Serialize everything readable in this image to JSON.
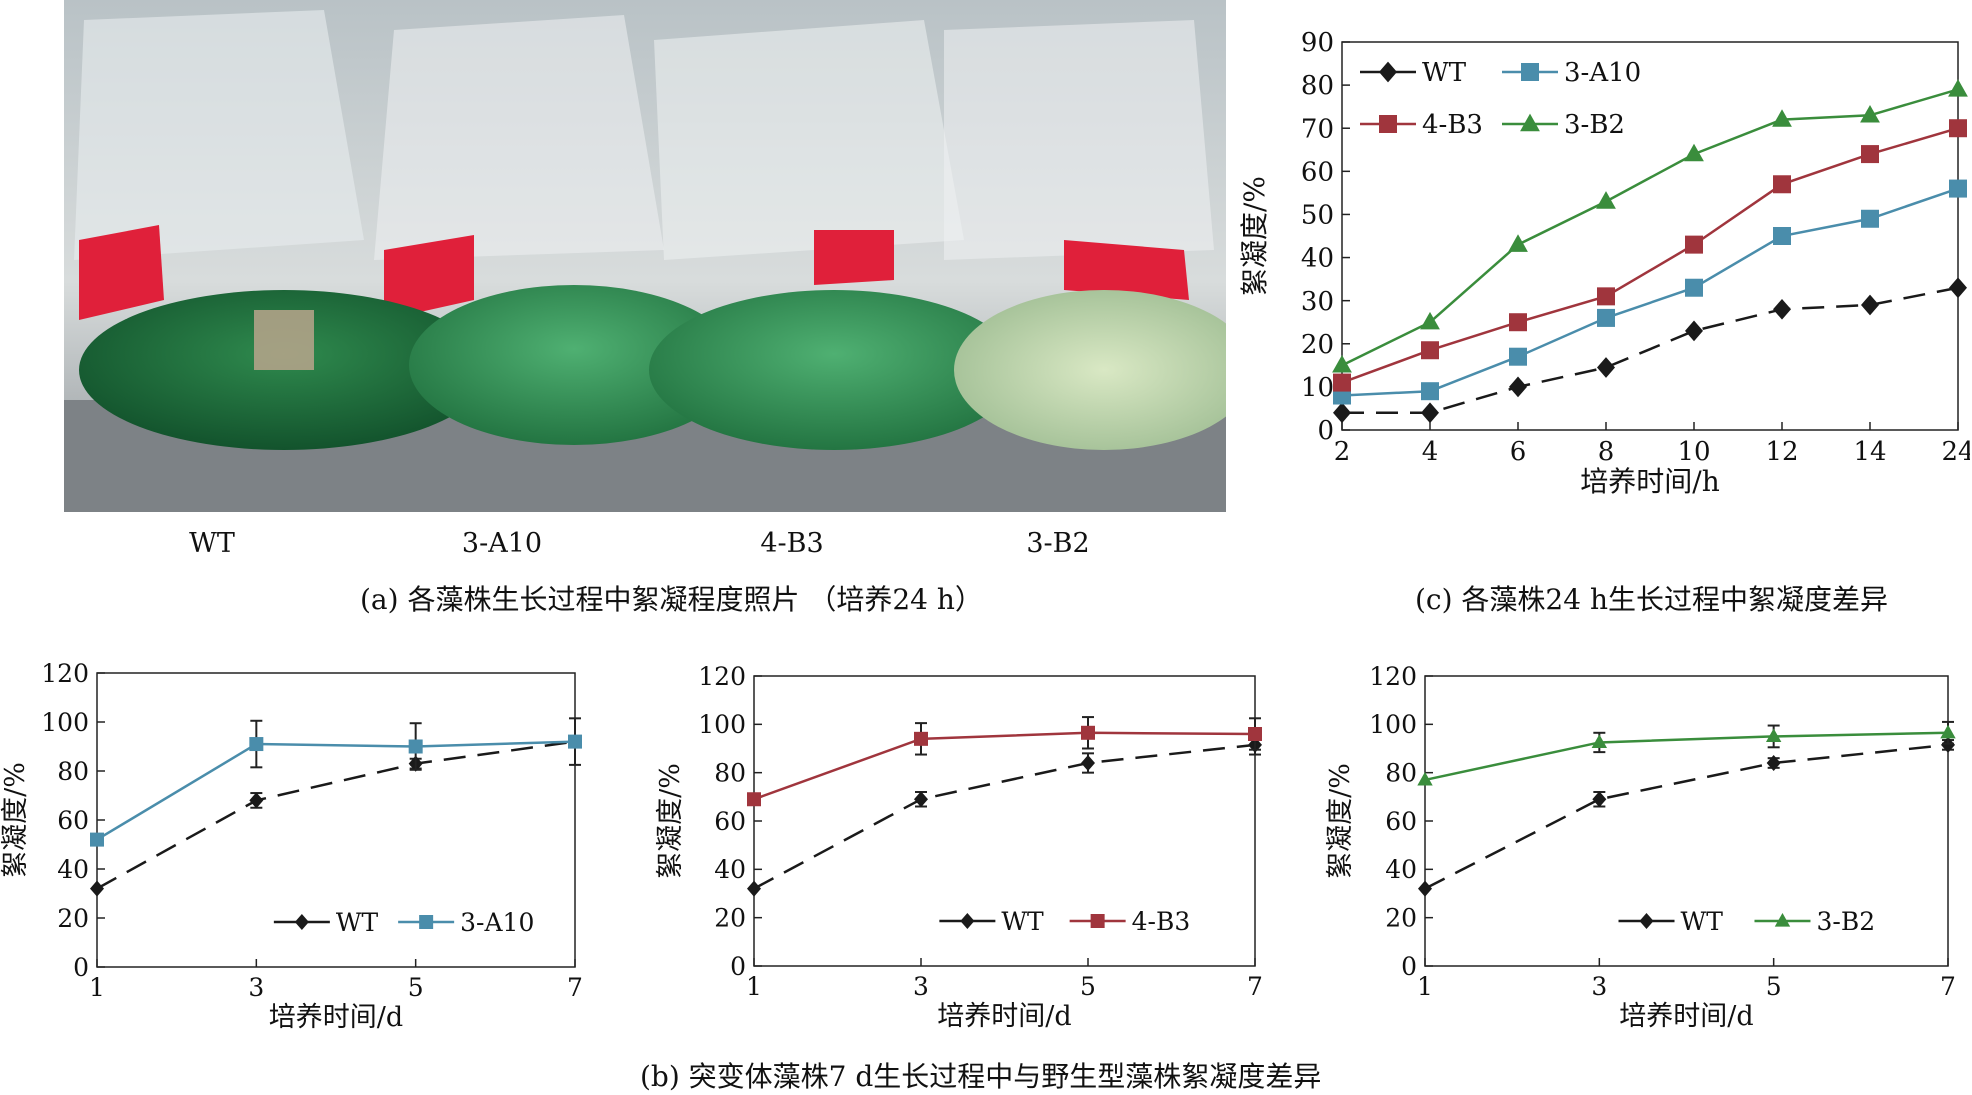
{
  "photo": {
    "labels": [
      "WT",
      "3-A10",
      "4-B3",
      "3-B2"
    ],
    "caption": "(a) 各藻株生长过程中絮凝程度照片 （培养24 h）"
  },
  "caption_c": "(c) 各藻株24 h生长过程中絮凝度差异",
  "caption_b": "(b) 突变体藻株7 d生长过程中与野生型藻株絮凝度差异",
  "colors": {
    "WT": "#1a1a1a",
    "3-A10": "#4a8dab",
    "4-B3": "#a0353d",
    "3-B2": "#3a8d3c"
  },
  "chart_data": [
    {
      "id": "c",
      "type": "line",
      "xlabel": "培养时间/h",
      "ylabel": "絮凝度/%",
      "categories": [
        "2",
        "4",
        "6",
        "8",
        "10",
        "12",
        "14",
        "24"
      ],
      "ylim": [
        0,
        90
      ],
      "yticks": [
        0,
        10,
        20,
        30,
        40,
        50,
        60,
        70,
        80,
        90
      ],
      "legend": "top-left",
      "series": [
        {
          "name": "WT",
          "marker": "diamond",
          "dashed": true,
          "values": [
            4,
            4,
            10,
            14.5,
            23,
            28,
            29,
            33
          ]
        },
        {
          "name": "3-A10",
          "marker": "square",
          "dashed": false,
          "values": [
            8,
            9,
            17,
            26,
            33,
            45,
            49,
            56
          ]
        },
        {
          "name": "4-B3",
          "marker": "square",
          "dashed": false,
          "values": [
            11,
            18.5,
            25,
            31,
            43,
            57,
            64,
            70
          ]
        },
        {
          "name": "3-B2",
          "marker": "triangle",
          "dashed": false,
          "values": [
            15,
            25,
            43,
            53,
            64,
            72,
            73,
            79
          ]
        }
      ]
    },
    {
      "id": "b1",
      "type": "line",
      "xlabel": "培养时间/d",
      "ylabel": "絮凝度/%",
      "categories": [
        "1",
        "3",
        "5",
        "7"
      ],
      "ylim": [
        0,
        120
      ],
      "yticks": [
        0,
        20,
        40,
        60,
        80,
        100,
        120
      ],
      "legend": "bottom-right",
      "series": [
        {
          "name": "WT",
          "marker": "diamond",
          "dashed": true,
          "values": [
            32,
            68,
            83,
            92
          ],
          "errors": [
            0,
            3,
            2,
            2
          ]
        },
        {
          "name": "3-A10",
          "marker": "square",
          "dashed": false,
          "values": [
            52,
            91,
            90,
            92
          ],
          "errors": [
            0,
            9.5,
            9.5,
            9.5
          ]
        }
      ]
    },
    {
      "id": "b2",
      "type": "line",
      "xlabel": "培养时间/d",
      "ylabel": "絮凝度/%",
      "categories": [
        "1",
        "3",
        "5",
        "7"
      ],
      "ylim": [
        0,
        120
      ],
      "yticks": [
        0,
        20,
        40,
        60,
        80,
        100,
        120
      ],
      "legend": "bottom-right",
      "series": [
        {
          "name": "WT",
          "marker": "diamond",
          "dashed": true,
          "values": [
            32,
            69,
            84,
            91.5
          ],
          "errors": [
            0,
            3,
            4,
            4
          ]
        },
        {
          "name": "4-B3",
          "marker": "square",
          "dashed": false,
          "values": [
            69,
            94,
            96.5,
            96
          ],
          "errors": [
            0,
            6.5,
            6.5,
            6.5
          ]
        }
      ]
    },
    {
      "id": "b3",
      "type": "line",
      "xlabel": "培养时间/d",
      "ylabel": "絮凝度/%",
      "categories": [
        "1",
        "3",
        "5",
        "7"
      ],
      "ylim": [
        0,
        120
      ],
      "yticks": [
        0,
        20,
        40,
        60,
        80,
        100,
        120
      ],
      "legend": "bottom-right",
      "series": [
        {
          "name": "WT",
          "marker": "diamond",
          "dashed": true,
          "values": [
            32,
            69,
            84,
            91.5
          ],
          "errors": [
            0,
            3,
            2,
            2
          ]
        },
        {
          "name": "3-B2",
          "marker": "triangle",
          "dashed": false,
          "values": [
            77,
            92.5,
            95,
            96.5
          ],
          "errors": [
            0,
            4,
            4.5,
            4.5
          ]
        }
      ]
    }
  ]
}
